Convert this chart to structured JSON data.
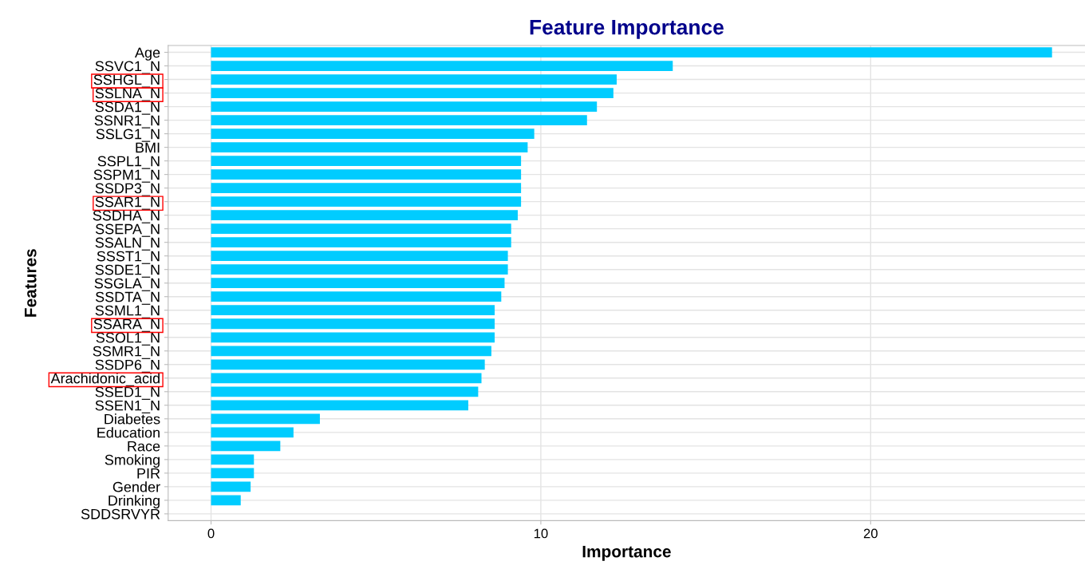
{
  "chart_data": {
    "type": "bar",
    "orientation": "horizontal",
    "title": "Feature Importance",
    "xlabel": "Importance",
    "ylabel": "Features",
    "categories": [
      "Age",
      "SSVC1_N",
      "SSHGL_N",
      "SSLNA_N",
      "SSDA1_N",
      "SSNR1_N",
      "SSLG1_N",
      "BMI",
      "SSPL1_N",
      "SSPM1_N",
      "SSDP3_N",
      "SSAR1_N",
      "SSDHA_N",
      "SSEPA_N",
      "SSALN_N",
      "SSST1_N",
      "SSDE1_N",
      "SSGLA_N",
      "SSDTA_N",
      "SSML1_N",
      "SSARA_N",
      "SSOL1_N",
      "SSMR1_N",
      "SSDP6_N",
      "Arachidonic_acid",
      "SSED1_N",
      "SSEN1_N",
      "Diabetes",
      "Education",
      "Race",
      "Smoking",
      "PIR",
      "Gender",
      "Drinking",
      "SDDSRVYR"
    ],
    "values": [
      25.5,
      14.0,
      12.3,
      12.2,
      11.7,
      11.4,
      9.8,
      9.6,
      9.4,
      9.4,
      9.4,
      9.4,
      9.3,
      9.1,
      9.1,
      9.0,
      9.0,
      8.9,
      8.8,
      8.6,
      8.6,
      8.6,
      8.5,
      8.3,
      8.2,
      8.1,
      7.8,
      3.3,
      2.5,
      2.1,
      1.3,
      1.3,
      1.2,
      0.9,
      0
    ],
    "color": "#00ccff",
    "xlim": [
      -1.3,
      26.5
    ],
    "xticks": [
      0,
      10,
      20
    ],
    "grid": true
  }
}
